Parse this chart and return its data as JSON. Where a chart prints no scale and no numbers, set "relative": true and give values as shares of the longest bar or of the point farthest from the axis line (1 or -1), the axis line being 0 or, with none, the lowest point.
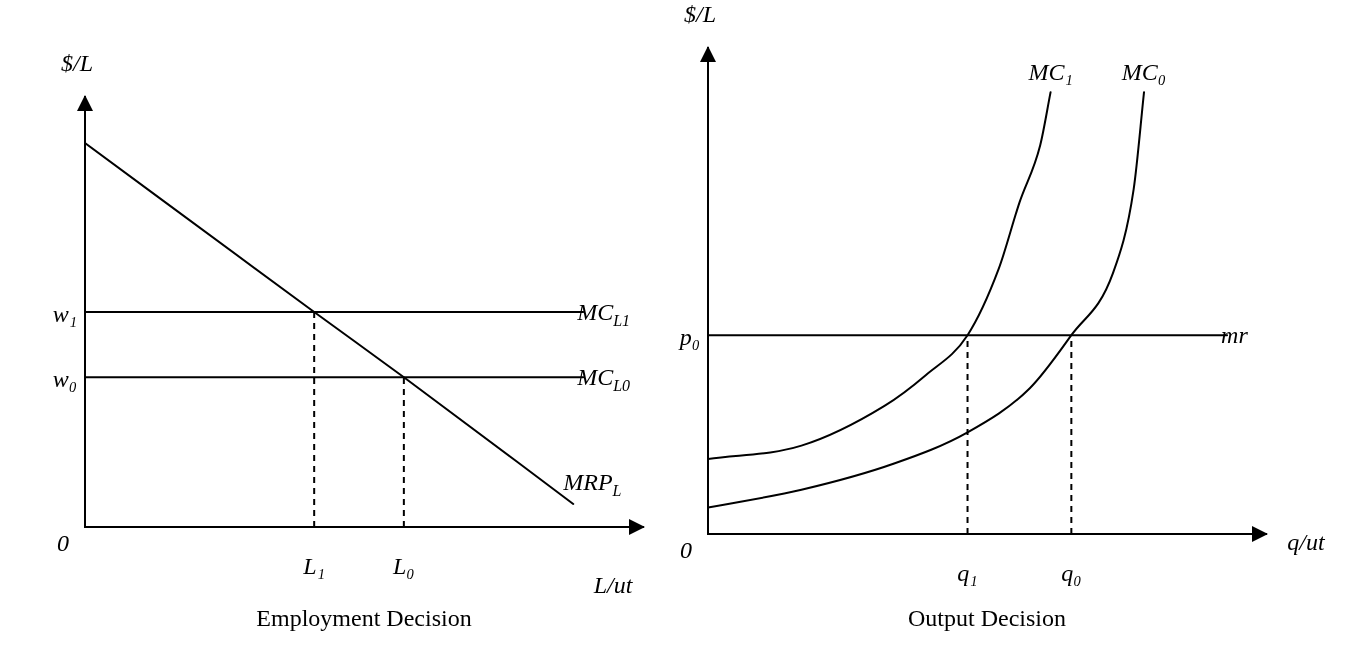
{
  "chart_data": [
    {
      "type": "line",
      "relative": true,
      "title": "Employment Decision",
      "xlabel": "L/ut",
      "ylabel": "$/L",
      "categories": [
        null,
        null,
        null,
        null,
        null,
        null,
        null,
        null,
        null,
        null,
        null,
        null,
        null,
        null,
        null,
        null,
        null,
        null,
        null,
        null,
        null,
        null,
        null,
        "L₁",
        null,
        null,
        null,
        null,
        null,
        null,
        null,
        null,
        "L₀",
        null,
        null,
        null,
        null,
        null,
        null,
        null,
        null,
        null,
        null,
        null,
        null,
        null,
        null,
        null,
        null,
        null,
        null
      ],
      "annotations": [
        "0",
        "w₁",
        "w₀"
      ],
      "ref_lines": [
        {
          "axis": "x",
          "value": "L₁",
          "line_style": "dashed",
          "color": "#000000"
        },
        {
          "axis": "x",
          "value": "L₀",
          "line_style": "dashed",
          "color": "#000000"
        }
      ],
      "series": [
        {
          "name": "MC$_{L1}$",
          "color": "#000000",
          "values": [
            0.56,
            null,
            null,
            null,
            null,
            null,
            null,
            null,
            null,
            null,
            null,
            null,
            null,
            null,
            null,
            null,
            null,
            null,
            null,
            null,
            null,
            null,
            null,
            null,
            null,
            null,
            null,
            null,
            null,
            null,
            null,
            null,
            null,
            null,
            null,
            null,
            null,
            null,
            null,
            null,
            null,
            null,
            null,
            null,
            null,
            null,
            null,
            null,
            null,
            null,
            0.56
          ]
        },
        {
          "name": "MC$_{L0}$",
          "color": "#000000",
          "values": [
            0.39,
            null,
            null,
            null,
            null,
            null,
            null,
            null,
            null,
            null,
            null,
            null,
            null,
            null,
            null,
            null,
            null,
            null,
            null,
            null,
            null,
            null,
            null,
            null,
            null,
            null,
            null,
            null,
            null,
            null,
            null,
            null,
            null,
            null,
            null,
            null,
            null,
            null,
            null,
            null,
            null,
            null,
            null,
            null,
            null,
            null,
            null,
            null,
            null,
            null,
            0.39
          ]
        },
        {
          "name": "MRP$_{L}$",
          "color": "#000000",
          "values": [
            1,
            null,
            null,
            null,
            null,
            null,
            null,
            null,
            null,
            null,
            null,
            null,
            null,
            null,
            null,
            null,
            null,
            null,
            null,
            null,
            null,
            null,
            null,
            0.56,
            null,
            null,
            null,
            null,
            null,
            null,
            null,
            null,
            0.39,
            null,
            null,
            null,
            null,
            null,
            null,
            null,
            null,
            null,
            null,
            null,
            null,
            null,
            null,
            null,
            null,
            0.06,
            null
          ]
        }
      ]
    },
    {
      "type": "line",
      "relative": true,
      "title": "Output Decision",
      "xlabel": "q/ut",
      "ylabel": "$/L",
      "categories": [
        null,
        null,
        null,
        null,
        null,
        null,
        null,
        null,
        null,
        null,
        null,
        null,
        null,
        null,
        null,
        null,
        null,
        null,
        null,
        null,
        null,
        null,
        null,
        null,
        null,
        "q₁",
        null,
        null,
        null,
        null,
        null,
        null,
        null,
        null,
        null,
        "q₀",
        null,
        null,
        null,
        null,
        null,
        null,
        null,
        null,
        null,
        null,
        null,
        null,
        null,
        null,
        null
      ],
      "annotations": [
        "0",
        "p₀"
      ],
      "ref_lines": [
        {
          "axis": "x",
          "value": "q₁",
          "line_style": "dashed",
          "color": "#000000"
        },
        {
          "axis": "x",
          "value": "q₀",
          "line_style": "dashed",
          "color": "#000000"
        }
      ],
      "series": [
        {
          "name": "mr",
          "color": "#000000",
          "values": [
            0.45,
            null,
            null,
            null,
            null,
            null,
            null,
            null,
            null,
            null,
            null,
            null,
            null,
            null,
            null,
            null,
            null,
            null,
            null,
            null,
            null,
            null,
            null,
            null,
            null,
            null,
            null,
            null,
            null,
            null,
            null,
            null,
            null,
            null,
            null,
            null,
            null,
            null,
            null,
            null,
            null,
            null,
            null,
            null,
            null,
            null,
            null,
            null,
            null,
            null,
            0.45
          ]
        },
        {
          "name": "MC₁",
          "color": "#000000",
          "values": [
            0.17,
            null,
            null,
            null,
            null,
            null,
            null,
            null,
            null,
            0.2,
            null,
            null,
            null,
            null,
            null,
            null,
            null,
            0.29,
            null,
            null,
            null,
            0.36,
            null,
            null,
            null,
            0.45,
            null,
            null,
            0.6,
            null,
            0.75,
            null,
            0.88,
            1,
            null,
            null,
            null,
            null,
            null,
            null,
            null,
            null,
            null,
            null,
            null,
            null,
            null,
            null,
            null,
            null,
            null
          ]
        },
        {
          "name": "MC₀",
          "color": "#000000",
          "values": [
            0.06,
            null,
            null,
            null,
            null,
            null,
            null,
            null,
            null,
            0.1,
            null,
            null,
            null,
            null,
            null,
            null,
            null,
            null,
            0.16,
            null,
            null,
            null,
            null,
            null,
            null,
            0.23,
            null,
            null,
            null,
            null,
            null,
            0.33,
            null,
            null,
            null,
            0.45,
            null,
            null,
            null,
            0.59,
            null,
            0.78,
            1,
            null,
            null,
            null,
            null,
            null,
            null,
            null,
            null
          ]
        }
      ]
    }
  ]
}
